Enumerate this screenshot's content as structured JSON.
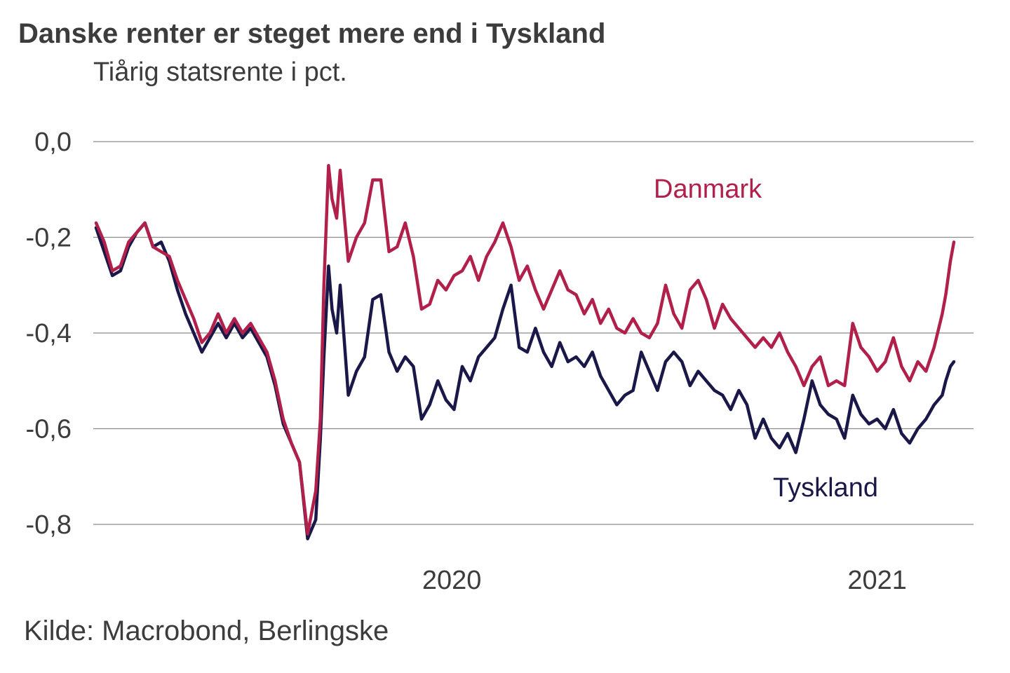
{
  "header": {
    "title": "Danske renter er steget mere end i Tyskland",
    "subtitle": "Tiårig statsrente i pct."
  },
  "footer": {
    "source": "Kilde: Macrobond, Berlingske"
  },
  "colors": {
    "danmark": "#b0204a",
    "tyskland": "#1a1848",
    "grid": "#8c8c8c",
    "text": "#3c3c3c"
  },
  "chart_data": {
    "type": "line",
    "title": "Danske renter er steget mere end i Tyskland",
    "subtitle": "Tiårig statsrente i pct.",
    "xlabel": "",
    "ylabel": "",
    "xlim": [
      "2019-03-01",
      "2021-03-08"
    ],
    "ylim": [
      -0.88,
      0.05
    ],
    "y_ticks": [
      0.0,
      -0.2,
      -0.4,
      -0.6,
      -0.8
    ],
    "y_tick_labels": [
      "0,0",
      "-0,2",
      "-0,4",
      "-0,6",
      "-0,8"
    ],
    "x_ticks": [
      "2020-01-01",
      "2021-01-01"
    ],
    "x_tick_labels": [
      "2020",
      "2021"
    ],
    "grid": true,
    "legend": "direct labels",
    "series": [
      {
        "name": "Danmark",
        "points": [
          [
            "2019-03-01",
            -0.17
          ],
          [
            "2019-03-08",
            -0.21
          ],
          [
            "2019-03-15",
            -0.27
          ],
          [
            "2019-03-22",
            -0.26
          ],
          [
            "2019-03-29",
            -0.21
          ],
          [
            "2019-04-05",
            -0.19
          ],
          [
            "2019-04-12",
            -0.17
          ],
          [
            "2019-04-19",
            -0.22
          ],
          [
            "2019-04-26",
            -0.23
          ],
          [
            "2019-05-03",
            -0.24
          ],
          [
            "2019-05-10",
            -0.29
          ],
          [
            "2019-05-17",
            -0.33
          ],
          [
            "2019-05-24",
            -0.37
          ],
          [
            "2019-05-31",
            -0.42
          ],
          [
            "2019-06-07",
            -0.4
          ],
          [
            "2019-06-14",
            -0.36
          ],
          [
            "2019-06-21",
            -0.4
          ],
          [
            "2019-06-28",
            -0.37
          ],
          [
            "2019-07-05",
            -0.4
          ],
          [
            "2019-07-12",
            -0.38
          ],
          [
            "2019-07-19",
            -0.41
          ],
          [
            "2019-07-26",
            -0.44
          ],
          [
            "2019-08-02",
            -0.5
          ],
          [
            "2019-08-09",
            -0.58
          ],
          [
            "2019-08-16",
            -0.63
          ],
          [
            "2019-08-23",
            -0.67
          ],
          [
            "2019-08-30",
            -0.82
          ],
          [
            "2019-09-06",
            -0.73
          ],
          [
            "2019-09-10",
            -0.58
          ],
          [
            "2019-09-13",
            -0.3
          ],
          [
            "2019-09-17",
            -0.05
          ],
          [
            "2019-09-20",
            -0.12
          ],
          [
            "2019-09-24",
            -0.16
          ],
          [
            "2019-09-27",
            -0.06
          ],
          [
            "2019-10-04",
            -0.25
          ],
          [
            "2019-10-11",
            -0.2
          ],
          [
            "2019-10-18",
            -0.17
          ],
          [
            "2019-10-25",
            -0.08
          ],
          [
            "2019-11-01",
            -0.08
          ],
          [
            "2019-11-08",
            -0.23
          ],
          [
            "2019-11-15",
            -0.22
          ],
          [
            "2019-11-22",
            -0.17
          ],
          [
            "2019-11-29",
            -0.24
          ],
          [
            "2019-12-06",
            -0.35
          ],
          [
            "2019-12-13",
            -0.34
          ],
          [
            "2019-12-20",
            -0.29
          ],
          [
            "2019-12-27",
            -0.31
          ],
          [
            "2020-01-03",
            -0.28
          ],
          [
            "2020-01-10",
            -0.27
          ],
          [
            "2020-01-17",
            -0.24
          ],
          [
            "2020-01-24",
            -0.29
          ],
          [
            "2020-01-31",
            -0.24
          ],
          [
            "2020-02-07",
            -0.21
          ],
          [
            "2020-02-14",
            -0.17
          ],
          [
            "2020-02-21",
            -0.22
          ],
          [
            "2020-02-28",
            -0.29
          ],
          [
            "2020-03-06",
            -0.26
          ],
          [
            "2020-03-13",
            -0.31
          ],
          [
            "2020-03-20",
            -0.35
          ],
          [
            "2020-03-27",
            -0.31
          ],
          [
            "2020-04-03",
            -0.27
          ],
          [
            "2020-04-10",
            -0.31
          ],
          [
            "2020-04-17",
            -0.32
          ],
          [
            "2020-04-24",
            -0.36
          ],
          [
            "2020-05-01",
            -0.33
          ],
          [
            "2020-05-08",
            -0.38
          ],
          [
            "2020-05-15",
            -0.35
          ],
          [
            "2020-05-22",
            -0.39
          ],
          [
            "2020-05-29",
            -0.4
          ],
          [
            "2020-06-05",
            -0.37
          ],
          [
            "2020-06-12",
            -0.4
          ],
          [
            "2020-06-19",
            -0.41
          ],
          [
            "2020-06-26",
            -0.38
          ],
          [
            "2020-07-03",
            -0.3
          ],
          [
            "2020-07-10",
            -0.36
          ],
          [
            "2020-07-17",
            -0.39
          ],
          [
            "2020-07-24",
            -0.31
          ],
          [
            "2020-07-31",
            -0.29
          ],
          [
            "2020-08-07",
            -0.33
          ],
          [
            "2020-08-14",
            -0.39
          ],
          [
            "2020-08-21",
            -0.34
          ],
          [
            "2020-08-28",
            -0.37
          ],
          [
            "2020-09-04",
            -0.39
          ],
          [
            "2020-09-11",
            -0.41
          ],
          [
            "2020-09-18",
            -0.43
          ],
          [
            "2020-09-25",
            -0.41
          ],
          [
            "2020-10-02",
            -0.43
          ],
          [
            "2020-10-09",
            -0.4
          ],
          [
            "2020-10-16",
            -0.44
          ],
          [
            "2020-10-23",
            -0.47
          ],
          [
            "2020-10-30",
            -0.51
          ],
          [
            "2020-11-06",
            -0.47
          ],
          [
            "2020-11-13",
            -0.45
          ],
          [
            "2020-11-20",
            -0.51
          ],
          [
            "2020-11-27",
            -0.5
          ],
          [
            "2020-12-04",
            -0.51
          ],
          [
            "2020-12-11",
            -0.38
          ],
          [
            "2020-12-18",
            -0.43
          ],
          [
            "2020-12-25",
            -0.45
          ],
          [
            "2021-01-01",
            -0.48
          ],
          [
            "2021-01-08",
            -0.46
          ],
          [
            "2021-01-15",
            -0.41
          ],
          [
            "2021-01-22",
            -0.47
          ],
          [
            "2021-01-29",
            -0.5
          ],
          [
            "2021-02-05",
            -0.46
          ],
          [
            "2021-02-12",
            -0.48
          ],
          [
            "2021-02-19",
            -0.43
          ],
          [
            "2021-02-26",
            -0.36
          ],
          [
            "2021-03-01",
            -0.32
          ],
          [
            "2021-03-05",
            -0.25
          ],
          [
            "2021-03-08",
            -0.21
          ]
        ]
      },
      {
        "name": "Tyskland",
        "points": [
          [
            "2019-03-01",
            -0.18
          ],
          [
            "2019-03-08",
            -0.23
          ],
          [
            "2019-03-15",
            -0.28
          ],
          [
            "2019-03-22",
            -0.27
          ],
          [
            "2019-03-29",
            -0.22
          ],
          [
            "2019-04-05",
            -0.19
          ],
          [
            "2019-04-12",
            -0.17
          ],
          [
            "2019-04-19",
            -0.22
          ],
          [
            "2019-04-26",
            -0.21
          ],
          [
            "2019-05-03",
            -0.25
          ],
          [
            "2019-05-10",
            -0.31
          ],
          [
            "2019-05-17",
            -0.36
          ],
          [
            "2019-05-24",
            -0.4
          ],
          [
            "2019-05-31",
            -0.44
          ],
          [
            "2019-06-07",
            -0.41
          ],
          [
            "2019-06-14",
            -0.38
          ],
          [
            "2019-06-21",
            -0.41
          ],
          [
            "2019-06-28",
            -0.38
          ],
          [
            "2019-07-05",
            -0.41
          ],
          [
            "2019-07-12",
            -0.39
          ],
          [
            "2019-07-19",
            -0.42
          ],
          [
            "2019-07-26",
            -0.45
          ],
          [
            "2019-08-02",
            -0.51
          ],
          [
            "2019-08-09",
            -0.59
          ],
          [
            "2019-08-16",
            -0.63
          ],
          [
            "2019-08-23",
            -0.67
          ],
          [
            "2019-08-30",
            -0.83
          ],
          [
            "2019-09-06",
            -0.79
          ],
          [
            "2019-09-10",
            -0.62
          ],
          [
            "2019-09-13",
            -0.45
          ],
          [
            "2019-09-17",
            -0.26
          ],
          [
            "2019-09-20",
            -0.35
          ],
          [
            "2019-09-24",
            -0.4
          ],
          [
            "2019-09-27",
            -0.3
          ],
          [
            "2019-10-04",
            -0.53
          ],
          [
            "2019-10-11",
            -0.48
          ],
          [
            "2019-10-18",
            -0.45
          ],
          [
            "2019-10-25",
            -0.33
          ],
          [
            "2019-11-01",
            -0.32
          ],
          [
            "2019-11-08",
            -0.44
          ],
          [
            "2019-11-15",
            -0.48
          ],
          [
            "2019-11-22",
            -0.45
          ],
          [
            "2019-11-29",
            -0.47
          ],
          [
            "2019-12-06",
            -0.58
          ],
          [
            "2019-12-13",
            -0.55
          ],
          [
            "2019-12-20",
            -0.5
          ],
          [
            "2019-12-27",
            -0.54
          ],
          [
            "2020-01-03",
            -0.56
          ],
          [
            "2020-01-10",
            -0.47
          ],
          [
            "2020-01-17",
            -0.5
          ],
          [
            "2020-01-24",
            -0.45
          ],
          [
            "2020-01-31",
            -0.43
          ],
          [
            "2020-02-07",
            -0.41
          ],
          [
            "2020-02-14",
            -0.35
          ],
          [
            "2020-02-21",
            -0.3
          ],
          [
            "2020-02-28",
            -0.43
          ],
          [
            "2020-03-06",
            -0.44
          ],
          [
            "2020-03-13",
            -0.39
          ],
          [
            "2020-03-20",
            -0.44
          ],
          [
            "2020-03-27",
            -0.47
          ],
          [
            "2020-04-03",
            -0.42
          ],
          [
            "2020-04-10",
            -0.46
          ],
          [
            "2020-04-17",
            -0.45
          ],
          [
            "2020-04-24",
            -0.47
          ],
          [
            "2020-05-01",
            -0.44
          ],
          [
            "2020-05-08",
            -0.49
          ],
          [
            "2020-05-15",
            -0.52
          ],
          [
            "2020-05-22",
            -0.55
          ],
          [
            "2020-05-29",
            -0.53
          ],
          [
            "2020-06-05",
            -0.52
          ],
          [
            "2020-06-12",
            -0.44
          ],
          [
            "2020-06-19",
            -0.48
          ],
          [
            "2020-06-26",
            -0.52
          ],
          [
            "2020-07-03",
            -0.46
          ],
          [
            "2020-07-10",
            -0.44
          ],
          [
            "2020-07-17",
            -0.46
          ],
          [
            "2020-07-24",
            -0.51
          ],
          [
            "2020-07-31",
            -0.48
          ],
          [
            "2020-08-07",
            -0.5
          ],
          [
            "2020-08-14",
            -0.52
          ],
          [
            "2020-08-21",
            -0.53
          ],
          [
            "2020-08-28",
            -0.56
          ],
          [
            "2020-09-04",
            -0.52
          ],
          [
            "2020-09-11",
            -0.55
          ],
          [
            "2020-09-18",
            -0.62
          ],
          [
            "2020-09-25",
            -0.58
          ],
          [
            "2020-10-02",
            -0.62
          ],
          [
            "2020-10-09",
            -0.64
          ],
          [
            "2020-10-16",
            -0.61
          ],
          [
            "2020-10-23",
            -0.65
          ],
          [
            "2020-10-30",
            -0.58
          ],
          [
            "2020-11-06",
            -0.5
          ],
          [
            "2020-11-13",
            -0.55
          ],
          [
            "2020-11-20",
            -0.57
          ],
          [
            "2020-11-27",
            -0.58
          ],
          [
            "2020-12-04",
            -0.62
          ],
          [
            "2020-12-11",
            -0.53
          ],
          [
            "2020-12-18",
            -0.57
          ],
          [
            "2020-12-25",
            -0.59
          ],
          [
            "2021-01-01",
            -0.58
          ],
          [
            "2021-01-08",
            -0.6
          ],
          [
            "2021-01-15",
            -0.56
          ],
          [
            "2021-01-22",
            -0.61
          ],
          [
            "2021-01-29",
            -0.63
          ],
          [
            "2021-02-05",
            -0.6
          ],
          [
            "2021-02-12",
            -0.58
          ],
          [
            "2021-02-19",
            -0.55
          ],
          [
            "2021-02-26",
            -0.53
          ],
          [
            "2021-03-01",
            -0.5
          ],
          [
            "2021-03-05",
            -0.47
          ],
          [
            "2021-03-08",
            -0.46
          ]
        ]
      }
    ]
  }
}
